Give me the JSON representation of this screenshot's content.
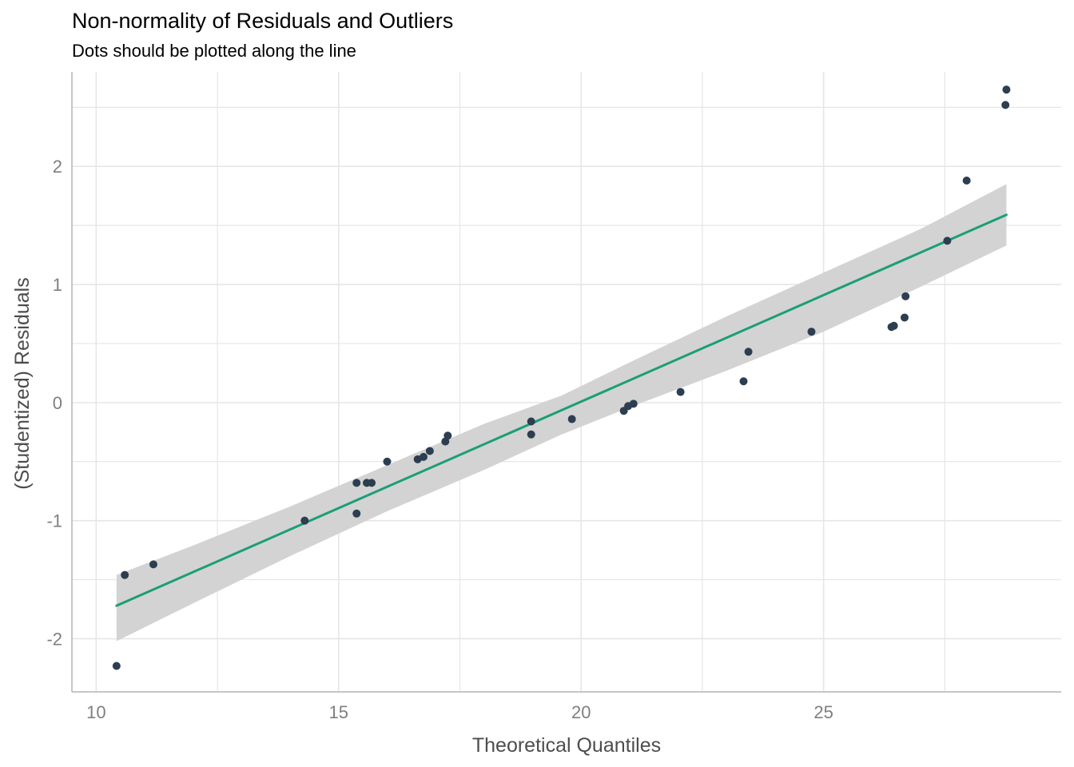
{
  "chart_data": {
    "type": "scatter",
    "title": "Non-normality of Residuals and Outliers",
    "subtitle": "Dots should be plotted along the line",
    "xlabel": "Theoretical Quantiles",
    "ylabel": "(Studentized) Residuals",
    "xlim": [
      9.5,
      29.9
    ],
    "ylim": [
      -2.45,
      2.8
    ],
    "xticks": [
      10,
      15,
      20,
      25
    ],
    "xtick_labels": [
      "10",
      "15",
      "20",
      "25"
    ],
    "yticks": [
      -2,
      -1,
      0,
      1,
      2
    ],
    "ytick_labels": [
      "-2",
      "-1",
      "0",
      "1",
      "2"
    ],
    "grid": true,
    "colors": {
      "points": "#2c3e50",
      "line": "#1b9e77",
      "band": "#d3d3d3",
      "grid": "#e6e6e6",
      "axis_text": "#7f7f7f",
      "axis_title": "#4d4d4d"
    },
    "points": [
      {
        "x": 10.42,
        "y": -2.23
      },
      {
        "x": 10.59,
        "y": -1.46
      },
      {
        "x": 11.18,
        "y": -1.37
      },
      {
        "x": 14.3,
        "y": -1.0
      },
      {
        "x": 15.37,
        "y": -0.68
      },
      {
        "x": 15.37,
        "y": -0.94
      },
      {
        "x": 15.58,
        "y": -0.68
      },
      {
        "x": 15.68,
        "y": -0.68
      },
      {
        "x": 16.0,
        "y": -0.5
      },
      {
        "x": 16.63,
        "y": -0.48
      },
      {
        "x": 16.75,
        "y": -0.46
      },
      {
        "x": 16.88,
        "y": -0.41
      },
      {
        "x": 17.2,
        "y": -0.33
      },
      {
        "x": 17.25,
        "y": -0.28
      },
      {
        "x": 18.97,
        "y": -0.16
      },
      {
        "x": 18.97,
        "y": -0.27
      },
      {
        "x": 19.81,
        "y": -0.14
      },
      {
        "x": 20.88,
        "y": -0.07
      },
      {
        "x": 20.97,
        "y": -0.03
      },
      {
        "x": 21.08,
        "y": -0.01
      },
      {
        "x": 22.05,
        "y": 0.09
      },
      {
        "x": 23.35,
        "y": 0.18
      },
      {
        "x": 23.45,
        "y": 0.43
      },
      {
        "x": 24.75,
        "y": 0.6
      },
      {
        "x": 26.4,
        "y": 0.64
      },
      {
        "x": 26.45,
        "y": 0.65
      },
      {
        "x": 26.67,
        "y": 0.72
      },
      {
        "x": 26.69,
        "y": 0.9
      },
      {
        "x": 27.55,
        "y": 1.37
      },
      {
        "x": 27.95,
        "y": 1.88
      },
      {
        "x": 28.75,
        "y": 2.52
      },
      {
        "x": 28.77,
        "y": 2.65
      }
    ],
    "fit_line": {
      "x": [
        10.42,
        28.77
      ],
      "y": [
        -1.72,
        1.59
      ]
    },
    "confidence_band": {
      "x": [
        10.42,
        12.0,
        14.0,
        16.0,
        18.0,
        19.6,
        21.0,
        23.0,
        25.0,
        27.0,
        28.77
      ],
      "lower": [
        -2.02,
        -1.7,
        -1.3,
        -0.92,
        -0.57,
        -0.27,
        -0.04,
        0.27,
        0.6,
        0.98,
        1.33
      ],
      "upper": [
        -1.46,
        -1.21,
        -0.88,
        -0.53,
        -0.18,
        0.06,
        0.34,
        0.73,
        1.1,
        1.47,
        1.85
      ]
    }
  }
}
